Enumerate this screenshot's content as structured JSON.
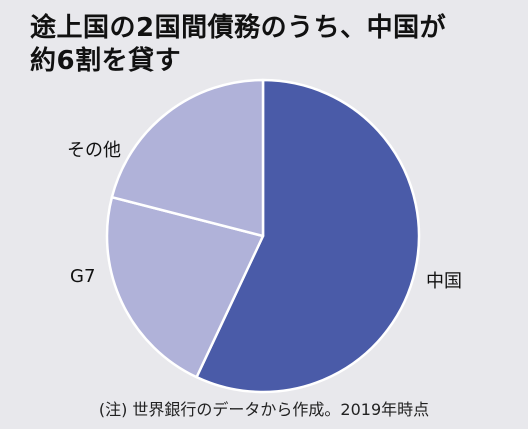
{
  "title_lines": [
    "途上国の2国間債務のうち、中国が",
    "約6割を貸す"
  ],
  "note": "(注) 世界銀行のデータから作成。2019年時点",
  "colors": {
    "background": "#e8e8ec",
    "primary": "#4a5ba8",
    "secondary": "#b0b2d9",
    "divider": "#ffffff"
  },
  "chart_data": {
    "type": "pie",
    "title": "途上国の2国間債務のうち、中国が約6割を貸す",
    "categories": [
      "中国",
      "G7",
      "その他"
    ],
    "values": [
      57,
      22,
      21
    ],
    "colors": [
      "#4a5ba8",
      "#b0b2d9",
      "#b0b2d9"
    ],
    "start_angle_deg": 0,
    "direction": "clockwise"
  }
}
